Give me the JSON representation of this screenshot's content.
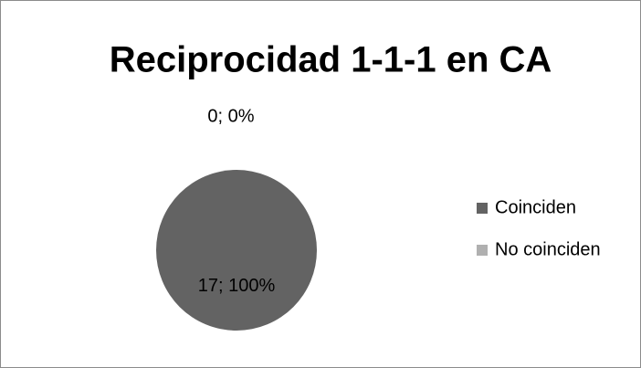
{
  "chart_data": {
    "type": "pie",
    "title": "Reciprocidad 1-1-1 en CA",
    "categories": [
      "Coinciden",
      "No coinciden"
    ],
    "values": [
      17,
      0
    ],
    "value_labels": [
      "17; 100%",
      "0; 0%"
    ],
    "colors": [
      "#636363",
      "#b0b0b0"
    ],
    "legend": "right"
  }
}
